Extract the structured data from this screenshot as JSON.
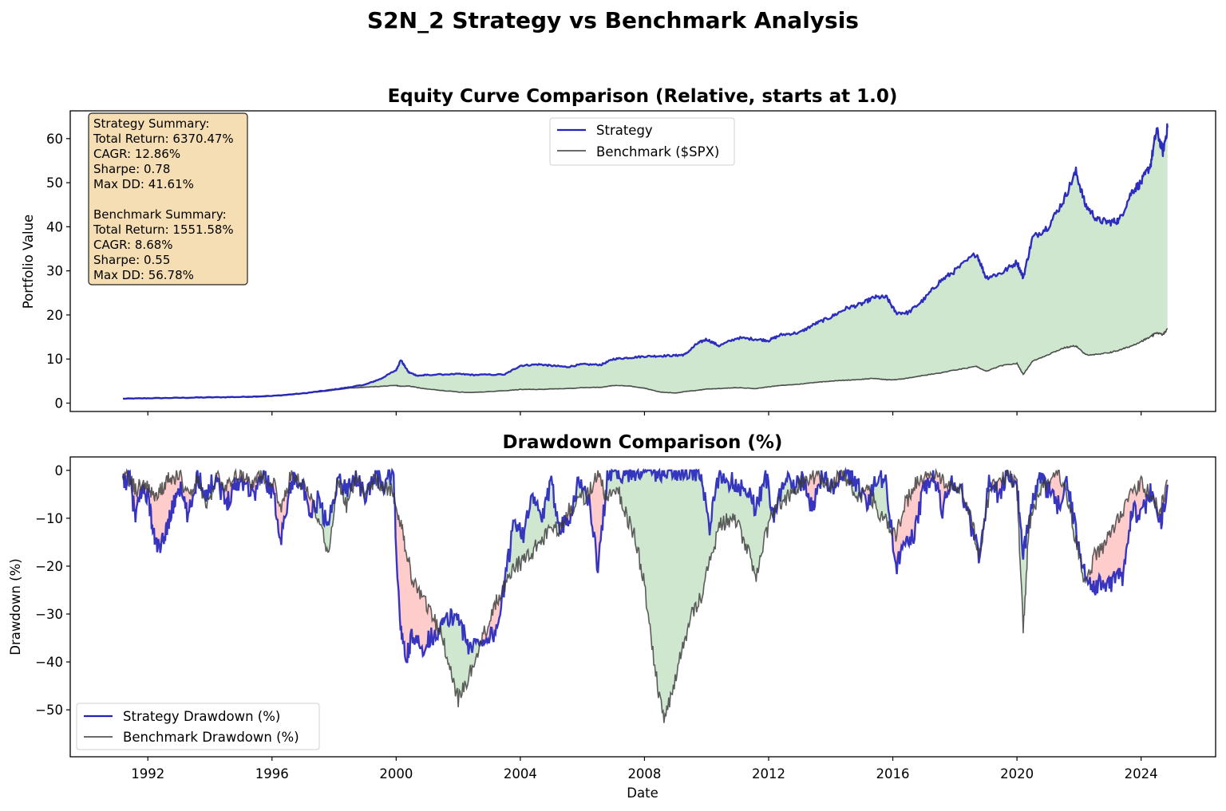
{
  "figure": {
    "suptitle": "S2N_2 Strategy vs Benchmark Analysis"
  },
  "chart_data": [
    {
      "type": "line",
      "title": "Equity Curve Comparison (Relative, starts at 1.0)",
      "xlabel": "",
      "ylabel": "Portfolio Value",
      "xlim": [
        1989.5,
        2026.4
      ],
      "ylim": [
        -1.9,
        66.3
      ],
      "xticks": [
        1992,
        1996,
        2000,
        2004,
        2008,
        2012,
        2016,
        2020,
        2024
      ],
      "xtick_labels_visible": false,
      "yticks": [
        0,
        10,
        20,
        30,
        40,
        50,
        60
      ],
      "ytick_labels": [
        "0",
        "10",
        "20",
        "30",
        "40",
        "50",
        "60"
      ],
      "grid": false,
      "legend": {
        "placement": "upper-center",
        "entries": [
          {
            "label": "Strategy",
            "color": "#2222bb"
          },
          {
            "label": "Benchmark ($SPX)",
            "color": "#3a3a3a"
          }
        ]
      },
      "fill_between": {
        "color": "#cfe6cf",
        "meaning": "strategy above benchmark"
      },
      "annotation": {
        "placement": "upper-left",
        "background": "#f5deb3",
        "lines": [
          "Strategy Summary:",
          "Total Return: 6370.47%",
          "CAGR: 12.86%",
          "Sharpe: 0.78",
          "Max DD: 41.61%",
          "",
          "Benchmark Summary:",
          "Total Return: 1551.58%",
          "CAGR: 8.68%",
          "Sharpe: 0.55",
          "Max DD: 56.78%"
        ]
      },
      "x": [
        1991.2,
        1992.0,
        1993.0,
        1994.0,
        1995.0,
        1996.0,
        1997.0,
        1997.8,
        1998.5,
        1999.0,
        1999.5,
        2000.0,
        2000.15,
        2000.4,
        2000.7,
        2001.0,
        2002.0,
        2002.5,
        2003.5,
        2004.0,
        2004.6,
        2005.0,
        2005.5,
        2006.0,
        2006.6,
        2007.0,
        2007.5,
        2008.0,
        2008.5,
        2009.0,
        2009.3,
        2009.7,
        2010.0,
        2010.4,
        2011.0,
        2011.6,
        2012.0,
        2012.4,
        2013.0,
        2013.5,
        2014.0,
        2014.5,
        2015.0,
        2015.4,
        2015.8,
        2016.1,
        2016.5,
        2017.0,
        2017.5,
        2018.0,
        2018.7,
        2019.0,
        2019.5,
        2020.0,
        2020.2,
        2020.5,
        2021.0,
        2021.5,
        2021.9,
        2022.2,
        2022.6,
        2023.0,
        2023.3,
        2023.7,
        2024.0,
        2024.3,
        2024.5,
        2024.7,
        2024.85
      ],
      "series": [
        {
          "name": "Strategy",
          "color": "#2222bb",
          "values": [
            1.0,
            1.1,
            1.2,
            1.3,
            1.4,
            1.6,
            2.2,
            2.9,
            3.6,
            4.2,
            5.5,
            7.5,
            9.8,
            7.0,
            6.2,
            6.4,
            6.6,
            6.4,
            6.5,
            8.5,
            8.8,
            8.5,
            8.2,
            8.8,
            8.7,
            10.0,
            10.3,
            10.6,
            10.7,
            10.8,
            11.0,
            13.5,
            14.5,
            13.0,
            14.8,
            14.5,
            14.2,
            15.5,
            16.0,
            18.0,
            19.5,
            21.5,
            22.5,
            24.0,
            24.0,
            20.5,
            20.5,
            23.5,
            27.5,
            30.0,
            34.0,
            28.5,
            29.5,
            32.0,
            28.5,
            37.5,
            40.0,
            46.0,
            52.5,
            45.0,
            41.5,
            41.0,
            41.5,
            48.0,
            50.0,
            54.0,
            62.0,
            57.0,
            62.5
          ]
        },
        {
          "name": "Benchmark ($SPX)",
          "color": "#3a3a3a",
          "values": [
            1.0,
            1.1,
            1.2,
            1.3,
            1.4,
            1.7,
            2.2,
            2.8,
            3.4,
            3.6,
            3.8,
            4.0,
            3.8,
            3.9,
            3.5,
            3.2,
            2.5,
            2.4,
            2.8,
            3.1,
            3.1,
            3.2,
            3.3,
            3.5,
            3.6,
            4.0,
            3.9,
            3.4,
            2.5,
            2.3,
            2.6,
            2.9,
            3.2,
            3.3,
            3.5,
            3.3,
            3.7,
            4.0,
            4.3,
            4.7,
            5.0,
            5.2,
            5.4,
            5.6,
            5.3,
            5.3,
            5.7,
            6.3,
            6.8,
            7.5,
            8.3,
            7.2,
            8.5,
            9.0,
            6.5,
            9.5,
            11.0,
            12.5,
            13.0,
            11.0,
            11.0,
            11.5,
            12.0,
            13.0,
            14.0,
            15.0,
            16.0,
            15.5,
            16.8
          ]
        }
      ]
    },
    {
      "type": "line",
      "title": "Drawdown Comparison (%)",
      "xlabel": "Date",
      "ylabel": "Drawdown (%)",
      "xlim": [
        1989.5,
        2026.4
      ],
      "ylim": [
        -59.8,
        2.8
      ],
      "xticks": [
        1992,
        1996,
        2000,
        2004,
        2008,
        2012,
        2016,
        2020,
        2024
      ],
      "xtick_labels": [
        "1992",
        "1996",
        "2000",
        "2004",
        "2008",
        "2012",
        "2016",
        "2020",
        "2024"
      ],
      "yticks": [
        0,
        -10,
        -20,
        -30,
        -40,
        -50
      ],
      "ytick_labels": [
        "0",
        "−10",
        "−20",
        "−30",
        "−40",
        "−50"
      ],
      "grid": false,
      "legend": {
        "placement": "lower-left",
        "entries": [
          {
            "label": "Strategy Drawdown (%)",
            "color": "#2222bb"
          },
          {
            "label": "Benchmark Drawdown (%)",
            "color": "#3a3a3a"
          }
        ]
      },
      "fill_colors": {
        "strategy_better": "#cfe6cf",
        "strategy_worse": "#ffcccc"
      },
      "x": [
        1991.2,
        1991.4,
        1991.6,
        1991.8,
        1992.0,
        1992.2,
        1992.4,
        1992.6,
        1992.8,
        1993.0,
        1993.3,
        1993.6,
        1993.9,
        1994.2,
        1994.5,
        1994.8,
        1995.1,
        1995.4,
        1995.7,
        1996.0,
        1996.3,
        1996.6,
        1996.9,
        1997.2,
        1997.5,
        1997.8,
        1998.1,
        1998.4,
        1998.7,
        1999.0,
        1999.3,
        1999.6,
        1999.9,
        2000.1,
        2000.3,
        2000.5,
        2000.8,
        2001.1,
        2001.4,
        2001.7,
        2002.0,
        2002.3,
        2002.6,
        2002.9,
        2003.2,
        2003.5,
        2003.8,
        2004.1,
        2004.4,
        2004.7,
        2005.0,
        2005.3,
        2005.6,
        2005.9,
        2006.2,
        2006.5,
        2006.8,
        2007.1,
        2007.4,
        2007.7,
        2008.0,
        2008.3,
        2008.6,
        2008.9,
        2009.2,
        2009.5,
        2009.8,
        2010.1,
        2010.4,
        2010.7,
        2011.0,
        2011.3,
        2011.6,
        2011.9,
        2012.2,
        2012.5,
        2012.8,
        2013.1,
        2013.4,
        2013.7,
        2014.0,
        2014.3,
        2014.6,
        2014.9,
        2015.2,
        2015.5,
        2015.8,
        2016.1,
        2016.4,
        2016.7,
        2017.0,
        2017.3,
        2017.6,
        2017.9,
        2018.2,
        2018.5,
        2018.8,
        2019.1,
        2019.4,
        2019.7,
        2020.0,
        2020.2,
        2020.4,
        2020.7,
        2021.0,
        2021.3,
        2021.6,
        2021.9,
        2022.2,
        2022.5,
        2022.8,
        2023.1,
        2023.4,
        2023.7,
        2024.0,
        2024.3,
        2024.6,
        2024.85
      ],
      "series": [
        {
          "name": "Strategy Drawdown (%)",
          "color": "#2222bb",
          "values": [
            -3,
            -1,
            -10,
            -4,
            -5,
            -14,
            -17,
            -12,
            -8,
            -3,
            -10,
            -1,
            -5,
            -1,
            -7,
            -3,
            -2,
            -5,
            -1,
            -4,
            -14,
            -3,
            -1,
            -10,
            -6,
            -12,
            -2,
            -4,
            -1,
            -6,
            -1,
            -3,
            0,
            -30,
            -40,
            -35,
            -37,
            -35,
            -33,
            -31,
            -30,
            -37,
            -36,
            -35,
            -34,
            -24,
            -10,
            -13,
            -6,
            -10,
            -3,
            -12,
            -9,
            -2,
            -6,
            -20,
            -2,
            0,
            -1,
            0,
            0,
            0,
            -1,
            0,
            0,
            0,
            -1,
            -12,
            -1,
            -2,
            -3,
            -4,
            -8,
            -1,
            -10,
            -1,
            -4,
            -2,
            -8,
            -1,
            -4,
            -2,
            -1,
            -3,
            -7,
            -1,
            -3,
            -20,
            -16,
            -13,
            -4,
            -1,
            -8,
            -2,
            -4,
            -11,
            -18,
            -2,
            -5,
            -1,
            -3,
            -19,
            -8,
            -2,
            -4,
            -8,
            -2,
            -13,
            -22,
            -24,
            -24,
            -23,
            -22,
            -8,
            -10,
            -4,
            -12,
            -3
          ]
        },
        {
          "name": "Benchmark Drawdown (%)",
          "color": "#3a3a3a",
          "values": [
            -1,
            -2,
            -4,
            -3,
            -3,
            -6,
            -4,
            -2,
            -2,
            -1,
            -5,
            -2,
            -8,
            -1,
            -3,
            -1,
            -1,
            -3,
            -1,
            -2,
            -8,
            -1,
            -2,
            -5,
            -10,
            -18,
            -2,
            -8,
            -1,
            -5,
            -2,
            -4,
            -4,
            -10,
            -16,
            -22,
            -26,
            -30,
            -33,
            -40,
            -48,
            -44,
            -38,
            -33,
            -28,
            -24,
            -20,
            -19,
            -17,
            -14,
            -13,
            -12,
            -8,
            -6,
            -5,
            -1,
            -6,
            -3,
            -9,
            -14,
            -24,
            -40,
            -52,
            -46,
            -38,
            -30,
            -27,
            -19,
            -12,
            -10,
            -11,
            -16,
            -22,
            -14,
            -8,
            -6,
            -4,
            -2,
            -1,
            -2,
            -3,
            -1,
            -2,
            -6,
            -4,
            -8,
            -11,
            -14,
            -7,
            -3,
            -2,
            -1,
            -2,
            -3,
            -4,
            -9,
            -18,
            -5,
            -2,
            -1,
            -3,
            -33,
            -11,
            -5,
            -2,
            -1,
            -5,
            -15,
            -24,
            -18,
            -16,
            -12,
            -8,
            -5,
            -3,
            -5,
            -9,
            -2
          ]
        }
      ]
    }
  ]
}
